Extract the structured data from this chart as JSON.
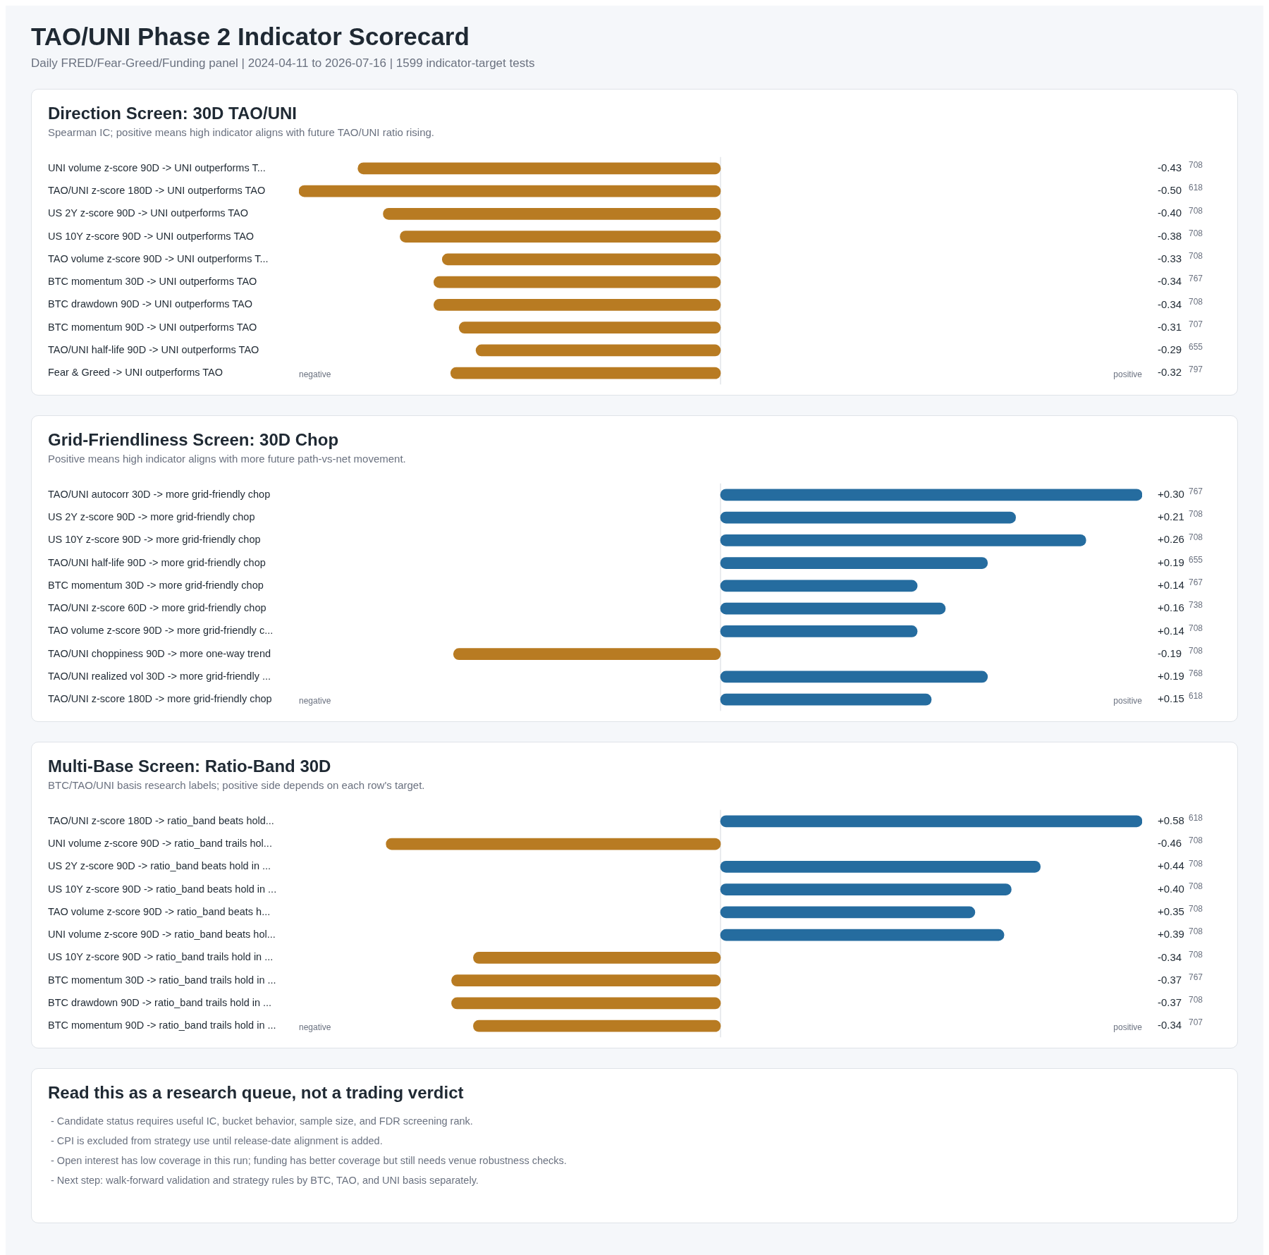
{
  "chart_data": [
    {
      "type": "other",
      "title": "TAO/UNI Phase 2 Indicator Scorecard",
      "subtitle": "Daily FRED/Fear-Greed/Funding panel | 2024-04-11 to 2026-07-16 | 1599 indicator-target tests"
    },
    {
      "type": "bar",
      "orientation": "horizontal",
      "title": "Direction Screen: 30D TAO/UNI",
      "subtitle": "Spearman IC; positive means high indicator aligns with future TAO/UNI ratio rising.",
      "tick_labels": "y",
      "categories": [
        "UNI volume z-score 90D -> UNI outperforms T...",
        "TAO/UNI z-score 180D -> UNI outperforms TAO",
        "US 2Y z-score 90D -> UNI outperforms TAO",
        "US 10Y z-score 90D -> UNI outperforms TAO",
        "TAO volume z-score 90D -> UNI outperforms T...",
        "BTC momentum 30D -> UNI outperforms TAO",
        "BTC drawdown 90D -> UNI outperforms TAO",
        "BTC momentum 90D -> UNI outperforms TAO",
        "TAO/UNI half-life 90D -> UNI outperforms TAO",
        "Fear & Greed -> UNI outperforms TAO"
      ],
      "values": [
        -0.43,
        -0.5,
        -0.4,
        -0.38,
        -0.33,
        -0.34,
        -0.34,
        -0.31,
        -0.29,
        -0.32
      ],
      "colors": [
        "#b87b22",
        "#b87b22",
        "#b87b22",
        "#b87b22",
        "#b87b22",
        "#b87b22",
        "#b87b22",
        "#b87b22",
        "#b87b22",
        "#b87b22"
      ],
      "value_labels": [
        "-0.43",
        "-0.50",
        "-0.40",
        "-0.38",
        "-0.33",
        "-0.34",
        "-0.34",
        "-0.31",
        "-0.29",
        "-0.32"
      ],
      "annotations": [
        "negative",
        "positive",
        "708",
        "618",
        "708",
        "708",
        "708",
        "767",
        "708",
        "707",
        "655",
        "797"
      ]
    },
    {
      "type": "bar",
      "orientation": "horizontal",
      "title": "Grid-Friendliness Screen: 30D Chop",
      "subtitle": "Positive means high indicator aligns with more future path-vs-net movement.",
      "tick_labels": "y",
      "categories": [
        "TAO/UNI autocorr 30D -> more grid-friendly chop",
        "US 2Y z-score 90D -> more grid-friendly chop",
        "US 10Y z-score 90D -> more grid-friendly chop",
        "TAO/UNI half-life 90D -> more grid-friendly chop",
        "BTC momentum 30D -> more grid-friendly chop",
        "TAO/UNI z-score 60D -> more grid-friendly chop",
        "TAO volume z-score 90D -> more grid-friendly c...",
        "TAO/UNI choppiness 90D -> more one-way trend",
        "TAO/UNI realized vol 30D -> more grid-friendly ...",
        "TAO/UNI z-score 180D -> more grid-friendly chop"
      ],
      "values": [
        0.3,
        0.21,
        0.26,
        0.19,
        0.14,
        0.16,
        0.14,
        -0.19,
        0.19,
        0.15
      ],
      "colors": [
        "#256c9f",
        "#256c9f",
        "#256c9f",
        "#256c9f",
        "#256c9f",
        "#256c9f",
        "#256c9f",
        "#b87b22",
        "#256c9f",
        "#256c9f"
      ],
      "value_labels": [
        "+0.30",
        "+0.21",
        "+0.26",
        "+0.19",
        "+0.14",
        "+0.16",
        "+0.14",
        "-0.19",
        "+0.19",
        "+0.15"
      ],
      "annotations": [
        "negative",
        "positive",
        "767",
        "708",
        "708",
        "655",
        "767",
        "738",
        "708",
        "708",
        "768",
        "618"
      ]
    },
    {
      "type": "bar",
      "orientation": "horizontal",
      "title": "Multi-Base Screen: Ratio-Band 30D",
      "subtitle": "BTC/TAO/UNI basis research labels; positive side depends on each row's target.",
      "tick_labels": "y",
      "categories": [
        "TAO/UNI z-score 180D -> ratio_band beats hold...",
        "UNI volume z-score 90D -> ratio_band trails hol...",
        "US 2Y z-score 90D -> ratio_band beats hold in ...",
        "US 10Y z-score 90D -> ratio_band beats hold in ...",
        "TAO volume z-score 90D -> ratio_band beats h...",
        "UNI volume z-score 90D -> ratio_band beats hol...",
        "US 10Y z-score 90D -> ratio_band trails hold in ...",
        "BTC momentum 30D -> ratio_band trails hold in ...",
        "BTC drawdown 90D -> ratio_band trails hold in ...",
        "BTC momentum 90D -> ratio_band trails hold in ..."
      ],
      "values": [
        0.58,
        -0.46,
        0.44,
        0.4,
        0.35,
        0.39,
        -0.34,
        -0.37,
        -0.37,
        -0.34
      ],
      "colors": [
        "#256c9f",
        "#b87b22",
        "#256c9f",
        "#256c9f",
        "#256c9f",
        "#256c9f",
        "#b87b22",
        "#b87b22",
        "#b87b22",
        "#b87b22"
      ],
      "value_labels": [
        "+0.58",
        "-0.46",
        "+0.44",
        "+0.40",
        "+0.35",
        "+0.39",
        "-0.34",
        "-0.37",
        "-0.37",
        "-0.34"
      ],
      "annotations": [
        "negative",
        "positive",
        "618",
        "708",
        "708",
        "708",
        "708",
        "708",
        "708",
        "767",
        "708",
        "707"
      ]
    },
    {
      "type": "other",
      "title": "Read this as a research queue, not a trading verdict",
      "annotations": [
        "- Candidate status requires useful IC, bucket behavior, sample size, and FDR screening rank.",
        "- CPI is excluded from strategy use until release-date alignment is added.",
        "- Open interest has low coverage in this run; funding has better coverage but still needs venue robustness checks.",
        "- Next step: walk-forward validation and strategy rules by BTC, TAO, and UNI basis separately."
      ]
    }
  ]
}
